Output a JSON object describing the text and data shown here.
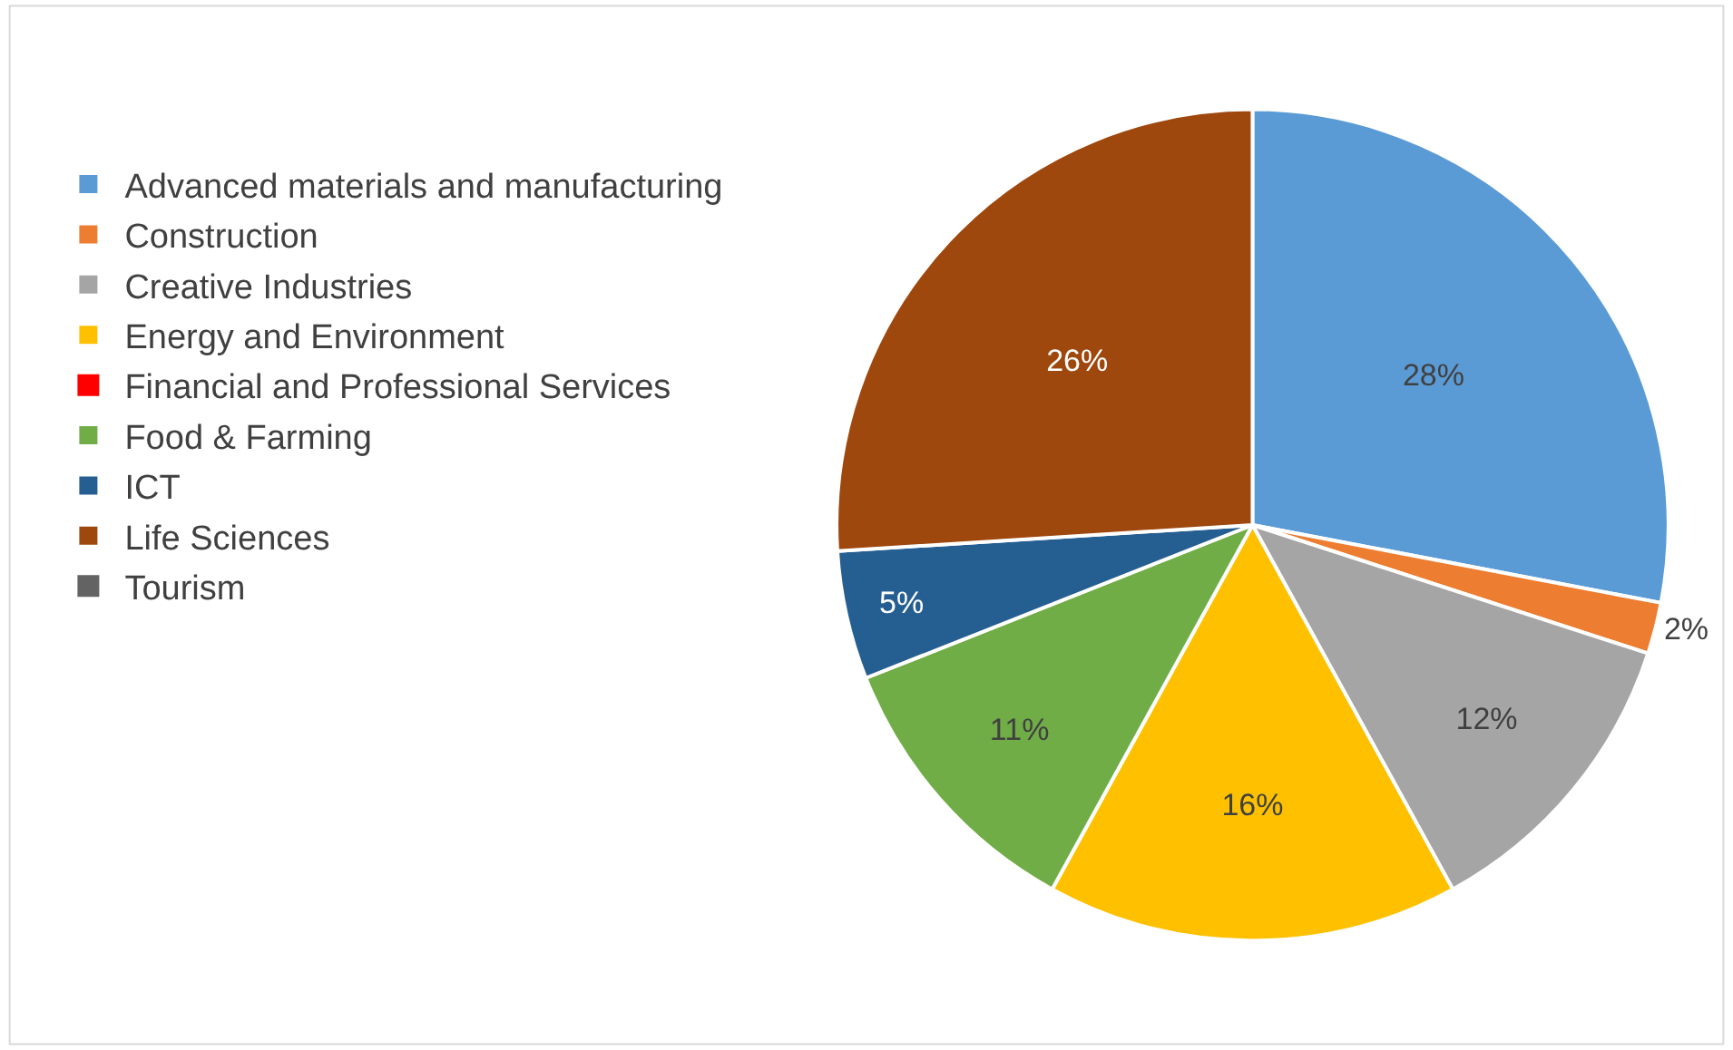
{
  "chart_data": {
    "type": "pie",
    "categories": [
      "Advanced materials and manufacturing",
      "Construction",
      "Creative Industries",
      "Energy and Environment",
      "Financial and Professional Services",
      "Food & Farming",
      "ICT",
      "Life Sciences",
      "Tourism"
    ],
    "values": [
      28,
      2,
      12,
      16,
      0,
      11,
      5,
      26,
      0
    ],
    "colors": [
      "#5b9bd5",
      "#ed7d31",
      "#a5a5a5",
      "#ffc000",
      "#ff0000",
      "#70ad47",
      "#255e91",
      "#9e480e",
      "#636363"
    ],
    "value_labels": [
      "28%",
      "2%",
      "12%",
      "16%",
      null,
      "11%",
      "5%",
      "26%",
      null
    ],
    "legend": "left"
  }
}
